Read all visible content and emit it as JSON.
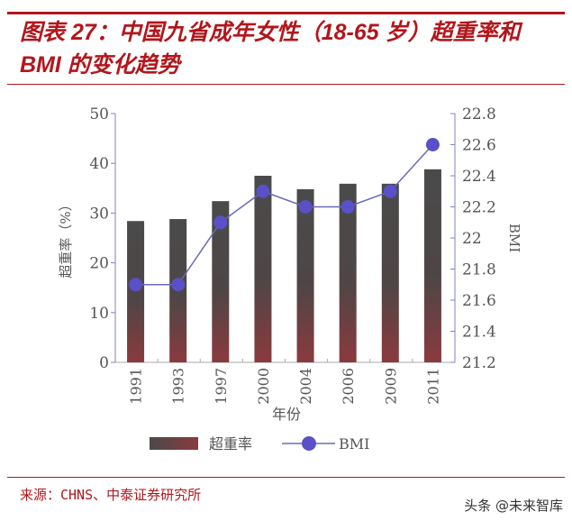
{
  "header": {
    "title": "图表 27：中国九省成年女性（18-65 岁）超重率和 BMI 的变化趋势"
  },
  "footer": {
    "source": "来源：CHNS、中泰证券研究所",
    "watermark": "头条 @未来智库"
  },
  "colors": {
    "accent": "#b2161b",
    "bar_top": "#4a4a4a",
    "bar_bottom": "#8a3a3e",
    "line": "#6a6ab8",
    "marker": "#5a50c8",
    "axis": "#8080c0"
  },
  "chart_data": {
    "type": "bar+line",
    "title": "中国九省成年女性（18-65 岁）超重率和 BMI 的变化趋势",
    "categories": [
      "1991",
      "1993",
      "1997",
      "2000",
      "2004",
      "2006",
      "2009",
      "2011"
    ],
    "series": [
      {
        "name": "超重率",
        "type": "bar",
        "axis": "left",
        "values": [
          28.4,
          28.8,
          32.4,
          37.5,
          34.8,
          35.9,
          35.9,
          38.8
        ]
      },
      {
        "name": "BMI",
        "type": "line",
        "axis": "right",
        "values": [
          21.7,
          21.7,
          22.1,
          22.3,
          22.2,
          22.2,
          22.3,
          22.6
        ]
      }
    ],
    "xlabel": "年份",
    "ylabel": "超重率（%）",
    "y2label": "BMI",
    "ylim": [
      0,
      50
    ],
    "yticks": [
      "0",
      "10",
      "20",
      "30",
      "40",
      "50"
    ],
    "y2lim": [
      21.2,
      22.8
    ],
    "y2ticks": [
      "21.2",
      "21.4",
      "21.6",
      "21.8",
      "22",
      "22.2",
      "22.4",
      "22.6",
      "22.8"
    ],
    "legend": [
      "超重率",
      "BMI"
    ],
    "legend_position": "bottom",
    "grid": false
  }
}
